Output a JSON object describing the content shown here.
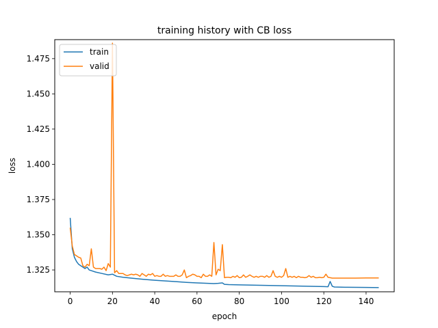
{
  "chart_data": {
    "type": "line",
    "title": "training history with CB loss",
    "xlabel": "epoch",
    "ylabel": "loss",
    "xlim": [
      -7.3,
      153.3
    ],
    "ylim": [
      1.3095,
      1.4885
    ],
    "xticks": [
      0,
      20,
      40,
      60,
      80,
      100,
      120,
      140
    ],
    "yticks": [
      1.325,
      1.35,
      1.375,
      1.4,
      1.425,
      1.45,
      1.475
    ],
    "ytick_labels": [
      "1.325",
      "1.350",
      "1.375",
      "1.400",
      "1.425",
      "1.450",
      "1.475"
    ],
    "legend": {
      "position": "top-left"
    },
    "grid": false,
    "series": [
      {
        "name": "train",
        "color": "#1f77b4",
        "points": [
          [
            0,
            1.362
          ],
          [
            1,
            1.34
          ],
          [
            2,
            1.334
          ],
          [
            3,
            1.331
          ],
          [
            4,
            1.329
          ],
          [
            5,
            1.328
          ],
          [
            6,
            1.327
          ],
          [
            7,
            1.326
          ],
          [
            8,
            1.327
          ],
          [
            9,
            1.325
          ],
          [
            10,
            1.3245
          ],
          [
            12,
            1.3235
          ],
          [
            15,
            1.3225
          ],
          [
            18,
            1.3215
          ],
          [
            20,
            1.322
          ],
          [
            22,
            1.3205
          ],
          [
            25,
            1.3198
          ],
          [
            30,
            1.319
          ],
          [
            35,
            1.3183
          ],
          [
            40,
            1.3177
          ],
          [
            45,
            1.3172
          ],
          [
            50,
            1.3167
          ],
          [
            55,
            1.3162
          ],
          [
            60,
            1.3158
          ],
          [
            65,
            1.3155
          ],
          [
            68,
            1.3153
          ],
          [
            70,
            1.3155
          ],
          [
            72,
            1.3158
          ],
          [
            73,
            1.3148
          ],
          [
            75,
            1.3146
          ],
          [
            80,
            1.3144
          ],
          [
            90,
            1.3141
          ],
          [
            100,
            1.3138
          ],
          [
            110,
            1.3135
          ],
          [
            120,
            1.3132
          ],
          [
            122,
            1.3131
          ],
          [
            123,
            1.3168
          ],
          [
            124,
            1.3134
          ],
          [
            125,
            1.3129
          ],
          [
            130,
            1.3127
          ],
          [
            140,
            1.3126
          ],
          [
            146,
            1.3125
          ]
        ]
      },
      {
        "name": "valid",
        "color": "#ff7f0e",
        "points": [
          [
            0,
            1.355
          ],
          [
            1,
            1.342
          ],
          [
            2,
            1.336
          ],
          [
            3,
            1.335
          ],
          [
            4,
            1.334
          ],
          [
            5,
            1.3335
          ],
          [
            6,
            1.328
          ],
          [
            7,
            1.327
          ],
          [
            8,
            1.329
          ],
          [
            9,
            1.328
          ],
          [
            10,
            1.34
          ],
          [
            11,
            1.327
          ],
          [
            12,
            1.326
          ],
          [
            13,
            1.326
          ],
          [
            14,
            1.326
          ],
          [
            15,
            1.3255
          ],
          [
            16,
            1.327
          ],
          [
            17,
            1.3245
          ],
          [
            18,
            1.3295
          ],
          [
            19,
            1.327
          ],
          [
            20,
            1.486
          ],
          [
            21,
            1.323
          ],
          [
            22,
            1.3245
          ],
          [
            23,
            1.3225
          ],
          [
            24,
            1.3225
          ],
          [
            25,
            1.3225
          ],
          [
            26,
            1.3215
          ],
          [
            27,
            1.321
          ],
          [
            28,
            1.3215
          ],
          [
            29,
            1.322
          ],
          [
            30,
            1.3215
          ],
          [
            31,
            1.322
          ],
          [
            32,
            1.3215
          ],
          [
            33,
            1.3205
          ],
          [
            34,
            1.3225
          ],
          [
            35,
            1.3215
          ],
          [
            36,
            1.3205
          ],
          [
            37,
            1.322
          ],
          [
            38,
            1.3215
          ],
          [
            39,
            1.3225
          ],
          [
            40,
            1.3205
          ],
          [
            41,
            1.321
          ],
          [
            42,
            1.3205
          ],
          [
            43,
            1.3205
          ],
          [
            44,
            1.322
          ],
          [
            45,
            1.3205
          ],
          [
            46,
            1.321
          ],
          [
            47,
            1.3205
          ],
          [
            48,
            1.3205
          ],
          [
            49,
            1.3205
          ],
          [
            50,
            1.3215
          ],
          [
            51,
            1.3205
          ],
          [
            52,
            1.3205
          ],
          [
            53,
            1.3215
          ],
          [
            54,
            1.325
          ],
          [
            55,
            1.3195
          ],
          [
            56,
            1.3205
          ],
          [
            57,
            1.321
          ],
          [
            58,
            1.322
          ],
          [
            59,
            1.3215
          ],
          [
            60,
            1.3205
          ],
          [
            61,
            1.3205
          ],
          [
            62,
            1.3195
          ],
          [
            63,
            1.322
          ],
          [
            64,
            1.3205
          ],
          [
            65,
            1.3205
          ],
          [
            66,
            1.3215
          ],
          [
            67,
            1.3205
          ],
          [
            68,
            1.3445
          ],
          [
            69,
            1.3215
          ],
          [
            70,
            1.3255
          ],
          [
            71,
            1.3245
          ],
          [
            72,
            1.343
          ],
          [
            73,
            1.3195
          ],
          [
            74,
            1.3198
          ],
          [
            75,
            1.3198
          ],
          [
            76,
            1.3195
          ],
          [
            77,
            1.3205
          ],
          [
            78,
            1.3198
          ],
          [
            79,
            1.321
          ],
          [
            80,
            1.3195
          ],
          [
            81,
            1.3198
          ],
          [
            82,
            1.3215
          ],
          [
            83,
            1.3198
          ],
          [
            84,
            1.3205
          ],
          [
            85,
            1.3215
          ],
          [
            86,
            1.3205
          ],
          [
            87,
            1.3198
          ],
          [
            88,
            1.3205
          ],
          [
            89,
            1.3198
          ],
          [
            90,
            1.3205
          ],
          [
            91,
            1.3205
          ],
          [
            92,
            1.3198
          ],
          [
            93,
            1.321
          ],
          [
            94,
            1.3198
          ],
          [
            95,
            1.3205
          ],
          [
            96,
            1.3245
          ],
          [
            97,
            1.3205
          ],
          [
            98,
            1.3198
          ],
          [
            99,
            1.3205
          ],
          [
            100,
            1.3198
          ],
          [
            101,
            1.321
          ],
          [
            102,
            1.326
          ],
          [
            103,
            1.3198
          ],
          [
            104,
            1.3205
          ],
          [
            105,
            1.3198
          ],
          [
            106,
            1.3205
          ],
          [
            107,
            1.3195
          ],
          [
            108,
            1.3205
          ],
          [
            109,
            1.3198
          ],
          [
            110,
            1.3198
          ],
          [
            111,
            1.3195
          ],
          [
            112,
            1.3198
          ],
          [
            113,
            1.321
          ],
          [
            114,
            1.3198
          ],
          [
            115,
            1.3205
          ],
          [
            116,
            1.3195
          ],
          [
            117,
            1.3195
          ],
          [
            118,
            1.3198
          ],
          [
            119,
            1.3195
          ],
          [
            120,
            1.3198
          ],
          [
            121,
            1.322
          ],
          [
            122,
            1.3198
          ],
          [
            123,
            1.3195
          ],
          [
            124,
            1.3192
          ],
          [
            125,
            1.3192
          ],
          [
            130,
            1.3192
          ],
          [
            135,
            1.3192
          ],
          [
            140,
            1.3193
          ],
          [
            146,
            1.3193
          ]
        ]
      }
    ]
  }
}
